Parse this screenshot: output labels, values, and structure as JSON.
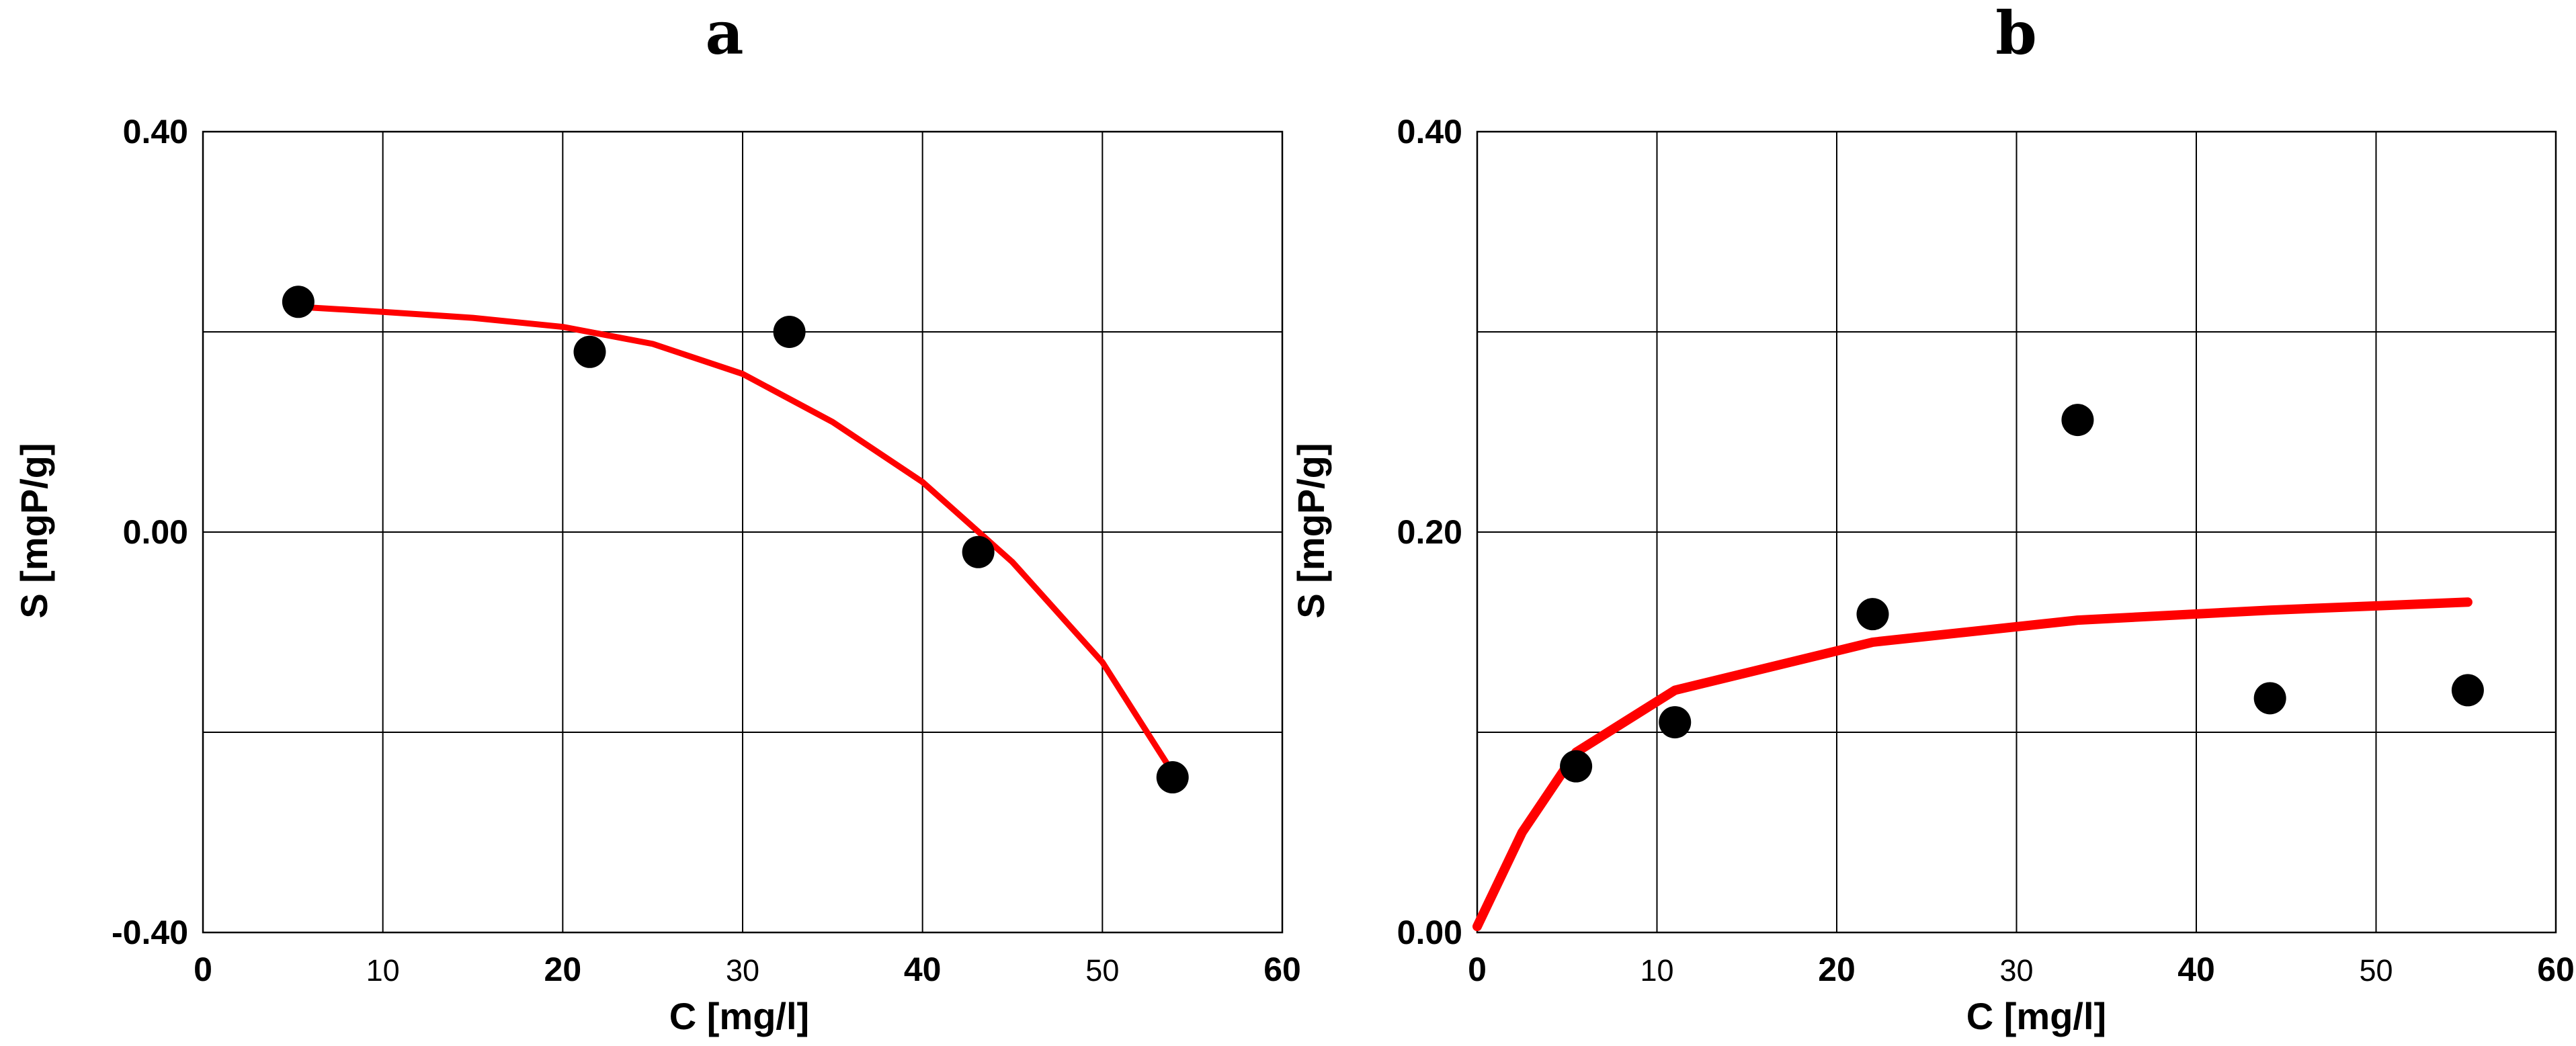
{
  "chart_data": [
    {
      "type": "scatter",
      "title": "a",
      "xlabel": "C [mg/l]",
      "ylabel": "S [mgP/g]",
      "xlim": [
        0,
        60
      ],
      "ylim": [
        -0.4,
        0.4
      ],
      "x_ticks": [
        0,
        10,
        20,
        30,
        40,
        50,
        60
      ],
      "x_tick_labels": [
        "0",
        "10",
        "20",
        "30",
        "40",
        "50",
        "60"
      ],
      "x_tick_bold": [
        true,
        false,
        true,
        false,
        true,
        false,
        true
      ],
      "y_ticks": [
        -0.4,
        0.0,
        0.4
      ],
      "y_tick_labels": [
        "-0.40",
        "0.00",
        "0.40"
      ],
      "x_gridlines": [
        10,
        20,
        30,
        40,
        50
      ],
      "y_gridlines": [
        -0.2,
        0.0,
        0.2
      ],
      "grid": true,
      "series": [
        {
          "kind": "markers",
          "color": "#000000",
          "x": [
            5.3,
            21.5,
            32.6,
            43.1,
            53.9
          ],
          "y": [
            0.23,
            0.18,
            0.2,
            -0.02,
            -0.245
          ]
        },
        {
          "kind": "line",
          "color": "#ff0000",
          "x": [
            5.3,
            10,
            15,
            20,
            25,
            30,
            35,
            40,
            45,
            50,
            53.9
          ],
          "y": [
            0.225,
            0.22,
            0.214,
            0.205,
            0.188,
            0.158,
            0.11,
            0.05,
            -0.03,
            -0.13,
            -0.24
          ]
        }
      ]
    },
    {
      "type": "scatter",
      "title": "b",
      "xlabel": "C [mg/l]",
      "ylabel": "S [mgP/g]",
      "xlim": [
        0,
        60
      ],
      "ylim": [
        0,
        0.4
      ],
      "x_ticks": [
        0,
        10,
        20,
        30,
        40,
        50,
        60
      ],
      "x_tick_labels": [
        "0",
        "10",
        "20",
        "30",
        "40",
        "50",
        "60"
      ],
      "x_tick_bold": [
        true,
        false,
        true,
        false,
        true,
        false,
        true
      ],
      "y_ticks": [
        0.0,
        0.2,
        0.4
      ],
      "y_tick_labels": [
        "0.00",
        "0.20",
        "0.40"
      ],
      "x_gridlines": [
        10,
        20,
        30,
        40,
        50
      ],
      "y_gridlines": [
        0.1,
        0.2,
        0.3
      ],
      "grid": true,
      "series": [
        {
          "kind": "markers",
          "color": "#000000",
          "x": [
            5.5,
            11.0,
            22.0,
            33.4,
            44.1,
            55.1
          ],
          "y": [
            0.083,
            0.105,
            0.159,
            0.256,
            0.117,
            0.121
          ]
        },
        {
          "kind": "line",
          "color": "#ff0000",
          "x": [
            0,
            2.5,
            5.5,
            11.0,
            22.0,
            33.4,
            44.1,
            55.1
          ],
          "y": [
            0.003,
            0.05,
            0.09,
            0.121,
            0.145,
            0.156,
            0.161,
            0.165
          ]
        }
      ]
    }
  ]
}
